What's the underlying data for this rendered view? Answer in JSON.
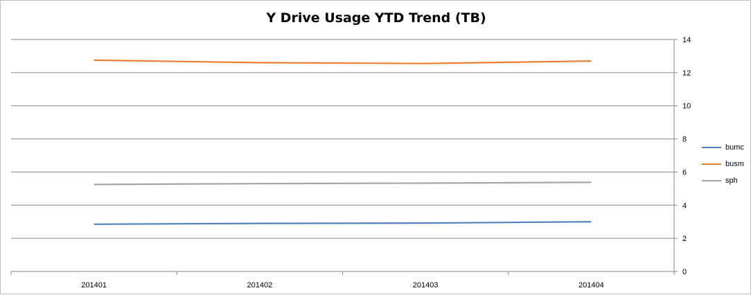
{
  "chart_data": {
    "type": "line",
    "title": "Y Drive Usage YTD Trend (TB)",
    "categories": [
      "201401",
      "201402",
      "201403",
      "201404"
    ],
    "series": [
      {
        "name": "bumc",
        "color": "#4f81bd",
        "values": [
          2.85,
          2.9,
          2.92,
          3.0
        ]
      },
      {
        "name": "busm",
        "color": "#ed7d31",
        "values": [
          12.75,
          12.6,
          12.55,
          12.7
        ]
      },
      {
        "name": "sph",
        "color": "#a5a5a5",
        "values": [
          5.25,
          5.3,
          5.33,
          5.38
        ]
      }
    ],
    "ylim": [
      0,
      14
    ],
    "yticks": [
      0,
      2,
      4,
      6,
      8,
      10,
      12,
      14
    ],
    "y_axis_side": "right",
    "grid": true,
    "legend_position": "right"
  }
}
